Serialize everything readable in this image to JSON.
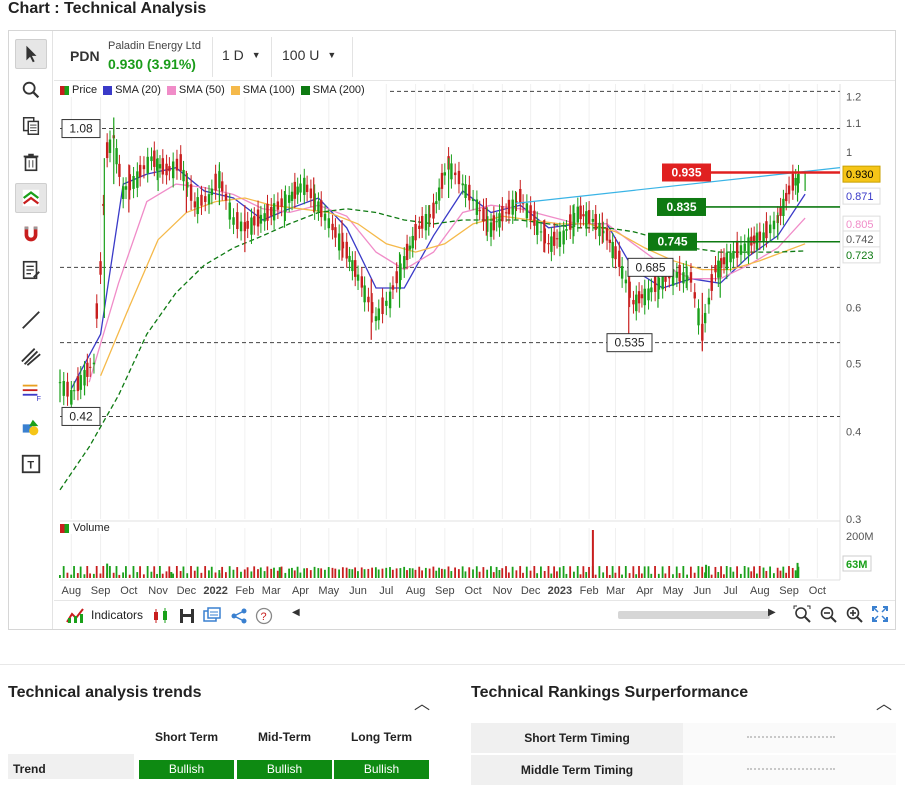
{
  "page": {
    "title": "Chart : Technical Analysis"
  },
  "header": {
    "ticker": "PDN",
    "company": "Paladin Energy Ltd",
    "price_change": "0.930 (3.91%)",
    "interval": "1 D",
    "units": "100 U"
  },
  "toolbar": {
    "tools": [
      "cursor-icon",
      "zoom-search-icon",
      "copy-icon",
      "trash-icon",
      "magnet-trend-icon",
      "magnet-icon",
      "notes-icon",
      "line-icon",
      "parallel-lines-icon",
      "fibonacci-icon",
      "shapes-icon",
      "text-icon"
    ]
  },
  "legend": {
    "items": [
      {
        "label": "Price",
        "color": "#1aa01a"
      },
      {
        "label": "SMA (20)",
        "color": "#3a3ac8"
      },
      {
        "label": "SMA (50)",
        "color": "#f08cc8"
      },
      {
        "label": "SMA (100)",
        "color": "#f5b94a"
      },
      {
        "label": "SMA (200)",
        "color": "#0e7a12"
      }
    ]
  },
  "volume": {
    "label": "Volume",
    "last_value": "63M",
    "axis_max": "200M"
  },
  "bottom_bar": {
    "indicators_label": "Indicators"
  },
  "chart_data": {
    "type": "candlestick",
    "title": "",
    "y_scale": "log",
    "ylim": [
      0.3,
      1.25
    ],
    "y_ticks": [
      "1.2",
      "1.1",
      "1",
      "0.6",
      "0.5",
      "0.4",
      "0.3"
    ],
    "x_ticks": [
      "Aug",
      "Sep",
      "Oct",
      "Nov",
      "Dec",
      "2022",
      "Feb",
      "Mar",
      "Apr",
      "May",
      "Jun",
      "Jul",
      "Aug",
      "Sep",
      "Oct",
      "Nov",
      "Dec",
      "2023",
      "Feb",
      "Mar",
      "Apr",
      "May",
      "Jun",
      "Jul",
      "Aug",
      "Sep",
      "Oct"
    ],
    "price_series": [
      [
        "2021-07-20",
        0.47
      ],
      [
        "2021-08-01",
        0.45
      ],
      [
        "2021-08-15",
        0.48
      ],
      [
        "2021-08-25",
        0.5
      ],
      [
        "2021-09-01",
        0.68
      ],
      [
        "2021-09-08",
        1.0
      ],
      [
        "2021-09-15",
        1.05
      ],
      [
        "2021-09-25",
        0.88
      ],
      [
        "2021-10-10",
        0.92
      ],
      [
        "2021-10-25",
        0.98
      ],
      [
        "2021-11-10",
        0.94
      ],
      [
        "2021-11-25",
        0.96
      ],
      [
        "2021-12-10",
        0.84
      ],
      [
        "2021-12-25",
        0.86
      ],
      [
        "2022-01-05",
        0.92
      ],
      [
        "2022-01-20",
        0.8
      ],
      [
        "2022-02-01",
        0.78
      ],
      [
        "2022-02-15",
        0.8
      ],
      [
        "2022-03-01",
        0.82
      ],
      [
        "2022-03-20",
        0.86
      ],
      [
        "2022-04-05",
        0.9
      ],
      [
        "2022-04-20",
        0.84
      ],
      [
        "2022-05-05",
        0.78
      ],
      [
        "2022-05-20",
        0.72
      ],
      [
        "2022-06-05",
        0.65
      ],
      [
        "2022-06-20",
        0.58
      ],
      [
        "2022-07-05",
        0.62
      ],
      [
        "2022-07-20",
        0.7
      ],
      [
        "2022-08-05",
        0.78
      ],
      [
        "2022-08-20",
        0.82
      ],
      [
        "2022-09-05",
        0.96
      ],
      [
        "2022-09-20",
        0.9
      ],
      [
        "2022-10-05",
        0.84
      ],
      [
        "2022-10-20",
        0.78
      ],
      [
        "2022-11-05",
        0.82
      ],
      [
        "2022-11-20",
        0.86
      ],
      [
        "2022-12-05",
        0.8
      ],
      [
        "2022-12-20",
        0.74
      ],
      [
        "2023-01-05",
        0.76
      ],
      [
        "2023-01-20",
        0.82
      ],
      [
        "2023-02-05",
        0.8
      ],
      [
        "2023-02-20",
        0.76
      ],
      [
        "2023-03-05",
        0.7
      ],
      [
        "2023-03-20",
        0.61
      ],
      [
        "2023-04-05",
        0.63
      ],
      [
        "2023-04-20",
        0.66
      ],
      [
        "2023-05-05",
        0.67
      ],
      [
        "2023-05-20",
        0.66
      ],
      [
        "2023-06-01",
        0.55
      ],
      [
        "2023-06-15",
        0.68
      ],
      [
        "2023-07-01",
        0.71
      ],
      [
        "2023-07-20",
        0.74
      ],
      [
        "2023-08-05",
        0.76
      ],
      [
        "2023-08-20",
        0.8
      ],
      [
        "2023-09-05",
        0.9
      ],
      [
        "2023-09-15",
        0.93
      ]
    ],
    "candles": [
      [
        "2021-07-20",
        0.46,
        0.49,
        0.44,
        0.47
      ],
      [
        "2021-08-15",
        0.47,
        0.5,
        0.45,
        0.48
      ],
      [
        "2021-09-05",
        0.6,
        0.98,
        0.58,
        0.95
      ],
      [
        "2021-09-15",
        0.96,
        1.12,
        0.9,
        1.02
      ],
      [
        "2021-10-01",
        0.9,
        0.96,
        0.82,
        0.88
      ],
      [
        "2021-11-01",
        0.92,
        0.98,
        0.88,
        0.95
      ],
      [
        "2021-12-01",
        0.9,
        0.94,
        0.82,
        0.85
      ],
      [
        "2022-01-05",
        0.88,
        0.96,
        0.84,
        0.92
      ],
      [
        "2022-02-01",
        0.8,
        0.84,
        0.72,
        0.78
      ],
      [
        "2022-03-15",
        0.8,
        0.88,
        0.78,
        0.86
      ],
      [
        "2022-04-15",
        0.86,
        0.92,
        0.82,
        0.84
      ],
      [
        "2022-05-15",
        0.78,
        0.8,
        0.7,
        0.72
      ],
      [
        "2022-06-15",
        0.62,
        0.66,
        0.54,
        0.58
      ],
      [
        "2022-07-15",
        0.62,
        0.72,
        0.6,
        0.7
      ],
      [
        "2022-08-15",
        0.78,
        0.84,
        0.76,
        0.82
      ],
      [
        "2022-09-05",
        0.88,
        0.98,
        0.86,
        0.96
      ],
      [
        "2022-10-15",
        0.82,
        0.86,
        0.76,
        0.78
      ],
      [
        "2022-11-15",
        0.82,
        0.88,
        0.8,
        0.86
      ],
      [
        "2022-12-15",
        0.78,
        0.8,
        0.72,
        0.74
      ],
      [
        "2023-01-15",
        0.76,
        0.84,
        0.74,
        0.82
      ],
      [
        "2023-02-15",
        0.8,
        0.82,
        0.74,
        0.76
      ],
      [
        "2023-03-15",
        0.66,
        0.68,
        0.55,
        0.61
      ],
      [
        "2023-04-15",
        0.63,
        0.68,
        0.6,
        0.66
      ],
      [
        "2023-05-15",
        0.66,
        0.7,
        0.64,
        0.66
      ],
      [
        "2023-06-01",
        0.6,
        0.63,
        0.52,
        0.56
      ],
      [
        "2023-06-20",
        0.64,
        0.7,
        0.62,
        0.68
      ],
      [
        "2023-07-20",
        0.72,
        0.76,
        0.7,
        0.74
      ],
      [
        "2023-08-20",
        0.76,
        0.82,
        0.75,
        0.8
      ],
      [
        "2023-09-10",
        0.86,
        0.93,
        0.85,
        0.9
      ],
      [
        "2023-09-18",
        0.9,
        0.94,
        0.88,
        0.93
      ]
    ],
    "sma": [
      {
        "name": "SMA (20)",
        "color": "#3a3ac8",
        "values": [
          [
            "2021-08-01",
            0.46
          ],
          [
            "2021-09-01",
            0.55
          ],
          [
            "2021-09-25",
            0.9
          ],
          [
            "2021-10-20",
            0.93
          ],
          [
            "2021-11-20",
            0.95
          ],
          [
            "2021-12-20",
            0.88
          ],
          [
            "2022-01-20",
            0.86
          ],
          [
            "2022-02-20",
            0.8
          ],
          [
            "2022-03-20",
            0.83
          ],
          [
            "2022-04-20",
            0.86
          ],
          [
            "2022-05-20",
            0.78
          ],
          [
            "2022-06-20",
            0.64
          ],
          [
            "2022-07-20",
            0.64
          ],
          [
            "2022-08-20",
            0.76
          ],
          [
            "2022-09-20",
            0.88
          ],
          [
            "2022-10-20",
            0.82
          ],
          [
            "2022-11-20",
            0.84
          ],
          [
            "2022-12-20",
            0.78
          ],
          [
            "2023-01-20",
            0.79
          ],
          [
            "2023-02-20",
            0.79
          ],
          [
            "2023-03-20",
            0.68
          ],
          [
            "2023-04-20",
            0.64
          ],
          [
            "2023-05-20",
            0.66
          ],
          [
            "2023-06-20",
            0.65
          ],
          [
            "2023-07-20",
            0.71
          ],
          [
            "2023-08-20",
            0.76
          ],
          [
            "2023-09-18",
            0.871
          ]
        ]
      },
      {
        "name": "SMA (50)",
        "color": "#f08cc8",
        "values": [
          [
            "2021-08-20",
            0.47
          ],
          [
            "2021-09-20",
            0.65
          ],
          [
            "2021-10-20",
            0.85
          ],
          [
            "2021-11-20",
            0.9
          ],
          [
            "2021-12-20",
            0.89
          ],
          [
            "2022-01-20",
            0.87
          ],
          [
            "2022-02-20",
            0.83
          ],
          [
            "2022-03-20",
            0.82
          ],
          [
            "2022-04-20",
            0.84
          ],
          [
            "2022-05-20",
            0.81
          ],
          [
            "2022-06-20",
            0.72
          ],
          [
            "2022-07-20",
            0.68
          ],
          [
            "2022-08-20",
            0.72
          ],
          [
            "2022-09-20",
            0.82
          ],
          [
            "2022-10-20",
            0.84
          ],
          [
            "2022-11-20",
            0.83
          ],
          [
            "2022-12-20",
            0.81
          ],
          [
            "2023-01-20",
            0.79
          ],
          [
            "2023-02-20",
            0.79
          ],
          [
            "2023-03-20",
            0.74
          ],
          [
            "2023-04-20",
            0.69
          ],
          [
            "2023-05-20",
            0.66
          ],
          [
            "2023-06-20",
            0.66
          ],
          [
            "2023-07-20",
            0.69
          ],
          [
            "2023-08-20",
            0.73
          ],
          [
            "2023-09-18",
            0.805
          ]
        ]
      },
      {
        "name": "SMA (100)",
        "color": "#f5b94a",
        "values": [
          [
            "2021-09-01",
            0.48
          ],
          [
            "2021-10-01",
            0.6
          ],
          [
            "2021-11-01",
            0.75
          ],
          [
            "2021-12-01",
            0.82
          ],
          [
            "2022-01-01",
            0.85
          ],
          [
            "2022-02-01",
            0.86
          ],
          [
            "2022-03-01",
            0.84
          ],
          [
            "2022-04-01",
            0.83
          ],
          [
            "2022-05-01",
            0.82
          ],
          [
            "2022-06-01",
            0.79
          ],
          [
            "2022-07-01",
            0.74
          ],
          [
            "2022-08-01",
            0.72
          ],
          [
            "2022-09-01",
            0.74
          ],
          [
            "2022-10-01",
            0.79
          ],
          [
            "2022-11-01",
            0.81
          ],
          [
            "2022-12-01",
            0.8
          ],
          [
            "2023-01-01",
            0.79
          ],
          [
            "2023-02-01",
            0.79
          ],
          [
            "2023-03-01",
            0.77
          ],
          [
            "2023-04-01",
            0.73
          ],
          [
            "2023-05-01",
            0.7
          ],
          [
            "2023-06-01",
            0.68
          ],
          [
            "2023-07-01",
            0.68
          ],
          [
            "2023-08-01",
            0.7
          ],
          [
            "2023-09-18",
            0.74
          ]
        ]
      },
      {
        "name": "SMA (200)",
        "color": "#0e7a12",
        "dashed": true,
        "values": [
          [
            "2021-07-20",
            0.33
          ],
          [
            "2021-08-20",
            0.38
          ],
          [
            "2021-09-20",
            0.45
          ],
          [
            "2021-10-20",
            0.55
          ],
          [
            "2021-11-20",
            0.63
          ],
          [
            "2021-12-20",
            0.69
          ],
          [
            "2022-01-20",
            0.73
          ],
          [
            "2022-02-20",
            0.76
          ],
          [
            "2022-03-20",
            0.79
          ],
          [
            "2022-04-20",
            0.82
          ],
          [
            "2022-05-20",
            0.83
          ],
          [
            "2022-06-20",
            0.82
          ],
          [
            "2022-07-20",
            0.8
          ],
          [
            "2022-08-20",
            0.79
          ],
          [
            "2022-09-20",
            0.8
          ],
          [
            "2022-10-20",
            0.8
          ],
          [
            "2022-11-20",
            0.8
          ],
          [
            "2022-12-20",
            0.79
          ],
          [
            "2023-01-20",
            0.78
          ],
          [
            "2023-02-20",
            0.78
          ],
          [
            "2023-03-20",
            0.77
          ],
          [
            "2023-04-20",
            0.75
          ],
          [
            "2023-05-20",
            0.73
          ],
          [
            "2023-06-20",
            0.72
          ],
          [
            "2023-07-20",
            0.72
          ],
          [
            "2023-08-20",
            0.72
          ],
          [
            "2023-09-18",
            0.723
          ]
        ]
      }
    ],
    "horizontal_levels": [
      {
        "value": 1.08,
        "label": "1.08",
        "style": "dashed",
        "label_side": "left"
      },
      {
        "value": 0.42,
        "label": "0.42",
        "style": "dashed",
        "label_side": "left"
      },
      {
        "value": 0.685,
        "label": "0.685",
        "style": "dashed",
        "label_side": "left"
      },
      {
        "value": 0.535,
        "label": "0.535",
        "style": "dashed",
        "label_side": "left"
      },
      {
        "value": 0.935,
        "label": "0.935",
        "style": "solid",
        "color": "#e02020",
        "label_side": "left"
      },
      {
        "value": 0.835,
        "label": "0.835",
        "style": "solid",
        "color": "#0e7a12",
        "label_side": "left"
      },
      {
        "value": 0.745,
        "label": "0.745",
        "style": "solid",
        "color": "#0e7a12",
        "label_side": "left"
      }
    ],
    "trendline": {
      "color": "#3ab4e6",
      "points": [
        [
          "2022-11-15",
          0.845
        ],
        [
          "2023-10-20",
          0.95
        ]
      ]
    },
    "right_labels": [
      {
        "value": 0.93,
        "label": "0.930",
        "bg": "#f5c518",
        "fg": "#000000"
      },
      {
        "value": 0.871,
        "label": "0.871",
        "bg": "#ffffff",
        "fg": "#3a3ac8"
      },
      {
        "value": 0.805,
        "label": "0.805",
        "bg": "#ffffff",
        "fg": "#f08cc8"
      },
      {
        "value": 0.742,
        "label": "0.742",
        "bg": "#ffffff",
        "fg": "#555555"
      },
      {
        "value": 0.723,
        "label": "0.723",
        "bg": "#ffffff",
        "fg": "#0e7a12"
      }
    ],
    "volume_spikes": [
      [
        "2021-09-08",
        60
      ],
      [
        "2021-11-15",
        25
      ],
      [
        "2022-01-05",
        20
      ],
      [
        "2022-03-10",
        45
      ],
      [
        "2023-02-05",
        200
      ],
      [
        "2023-06-05",
        55
      ],
      [
        "2023-09-10",
        63
      ]
    ],
    "x_range": [
      "2021-07-20",
      "2023-10-25"
    ]
  },
  "trends_panel": {
    "title": "Technical analysis trends",
    "columns": [
      "Short Term",
      "Mid-Term",
      "Long Term"
    ],
    "rows": [
      {
        "label": "Trend",
        "values": [
          "Bullish",
          "Bullish",
          "Bullish"
        ]
      }
    ]
  },
  "rankings_panel": {
    "title": "Technical Rankings Surperformance",
    "rows": [
      "Short Term Timing",
      "Middle Term Timing"
    ]
  },
  "colors": {
    "up": "#1aa01a",
    "down": "#c81e1e",
    "bullish": "#0e8a12"
  }
}
